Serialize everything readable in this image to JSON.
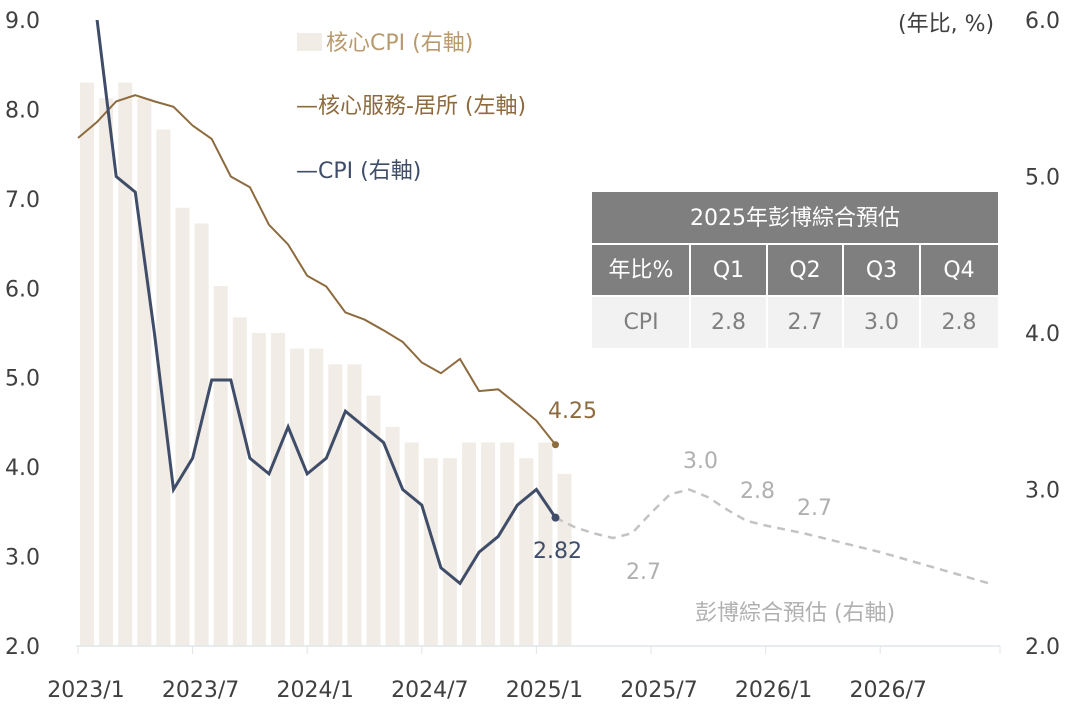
{
  "chart_data": {
    "type": "bar+line",
    "x_labels": [
      "2023/1",
      "2023/7",
      "2024/1",
      "2024/7",
      "2025/1",
      "2025/7",
      "2026/1",
      "2026/7"
    ],
    "months": [
      "2023/1",
      "2023/2",
      "2023/3",
      "2023/4",
      "2023/5",
      "2023/6",
      "2023/7",
      "2023/8",
      "2023/9",
      "2023/10",
      "2023/11",
      "2023/12",
      "2024/1",
      "2024/2",
      "2024/3",
      "2024/4",
      "2024/5",
      "2024/6",
      "2024/7",
      "2024/8",
      "2024/9",
      "2024/10",
      "2024/11",
      "2024/12",
      "2025/1",
      "2025/2"
    ],
    "left_axis": {
      "ticks": [
        "9.0",
        "8.0",
        "7.0",
        "6.0",
        "5.0",
        "4.0",
        "3.0",
        "2.0"
      ],
      "range": [
        2,
        9
      ]
    },
    "right_axis": {
      "label": "(年比, %)",
      "ticks": [
        "6.0",
        "5.0",
        "4.0",
        "3.0",
        "2.0"
      ],
      "range": [
        2,
        6
      ]
    },
    "series": [
      {
        "name": "核心CPI (右軸)",
        "type": "bar",
        "axis": "right",
        "color": "#f1ece5",
        "values": [
          5.6,
          5.5,
          5.6,
          5.5,
          5.3,
          4.8,
          4.7,
          4.3,
          4.1,
          4.0,
          4.0,
          3.9,
          3.9,
          3.8,
          3.8,
          3.6,
          3.4,
          3.3,
          3.2,
          3.2,
          3.3,
          3.3,
          3.3,
          3.2,
          3.3,
          3.1
        ]
      },
      {
        "name": "—核心服務-居所 (左軸)",
        "type": "line",
        "axis": "left",
        "color": "#8d6b3f",
        "values": [
          7.68,
          7.86,
          8.09,
          8.16,
          8.09,
          8.03,
          7.82,
          7.67,
          7.25,
          7.13,
          6.71,
          6.49,
          6.14,
          6.02,
          5.73,
          5.65,
          5.53,
          5.4,
          5.17,
          5.05,
          5.21,
          4.85,
          4.87,
          4.7,
          4.52,
          4.25
        ]
      },
      {
        "name": "—CPI (右軸)",
        "type": "line",
        "axis": "right",
        "color": "#3f4d68",
        "values": [
          6.4,
          6.0,
          5.0,
          4.9,
          4.0,
          3.0,
          3.2,
          3.7,
          3.7,
          3.2,
          3.1,
          3.4,
          3.1,
          3.2,
          3.5,
          3.4,
          3.3,
          3.0,
          2.9,
          2.5,
          2.4,
          2.6,
          2.7,
          2.9,
          3.0,
          2.82
        ]
      },
      {
        "name": "彭博綜合預估 (右軸)",
        "type": "line-dashed",
        "axis": "right",
        "color": "#c3c3c3",
        "points": [
          [
            25,
            2.82
          ],
          [
            26,
            2.76
          ],
          [
            27,
            2.72
          ],
          [
            28,
            2.69
          ],
          [
            29,
            2.72
          ],
          [
            30,
            2.85
          ],
          [
            31,
            2.97
          ],
          [
            32,
            3.0
          ],
          [
            33,
            2.95
          ],
          [
            34,
            2.87
          ],
          [
            35,
            2.8
          ],
          [
            36,
            2.77
          ],
          [
            38,
            2.72
          ],
          [
            40,
            2.66
          ],
          [
            42,
            2.6
          ],
          [
            44,
            2.53
          ],
          [
            46,
            2.46
          ],
          [
            47.7,
            2.4
          ]
        ]
      }
    ],
    "annotations": [
      {
        "text": "4.25",
        "color": "#8d6b3f"
      },
      {
        "text": "2.82",
        "color": "#3f4d68"
      },
      {
        "text": "2.7",
        "color": "#b0b0b0"
      },
      {
        "text": "3.0",
        "color": "#b0b0b0"
      },
      {
        "text": "2.8",
        "color": "#b0b0b0"
      },
      {
        "text": "2.7",
        "color": "#b0b0b0"
      }
    ],
    "legend_position": "top-center"
  },
  "table": {
    "title": "2025年彭博綜合預估",
    "headers": [
      "年比%",
      "Q1",
      "Q2",
      "Q3",
      "Q4"
    ],
    "row": [
      "CPI",
      "2.8",
      "2.7",
      "3.0",
      "2.8"
    ]
  }
}
